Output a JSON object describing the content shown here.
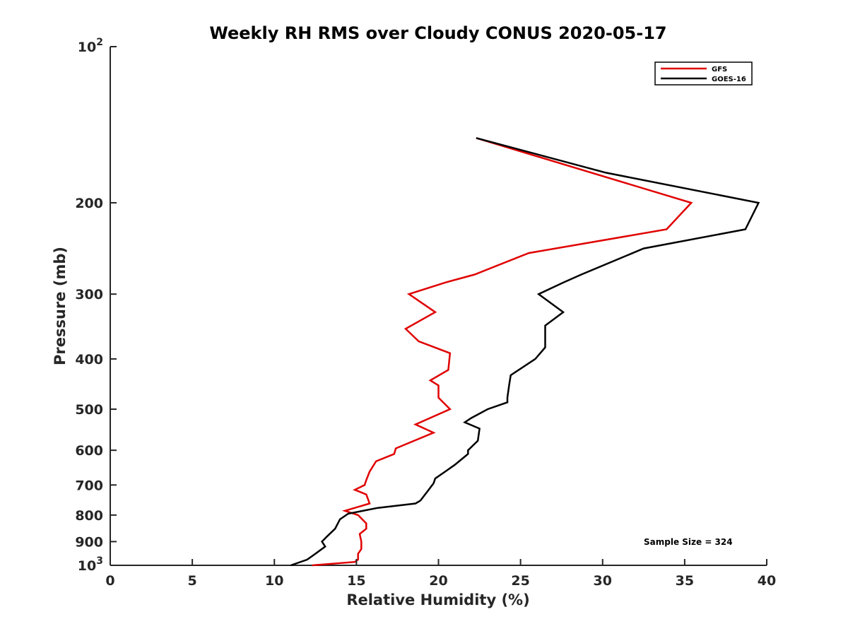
{
  "chart_data": {
    "type": "line",
    "title": "Weekly RH RMS over Cloudy CONUS 2020-05-17",
    "xlabel": "Relative Humidity (%)",
    "ylabel": "Pressure (mb)",
    "xlim": [
      0,
      40
    ],
    "ylim": [
      100,
      1000
    ],
    "y_scale": "log",
    "y_reversed": true,
    "x_ticks": [
      "0",
      "5",
      "10",
      "15",
      "20",
      "25",
      "30",
      "35",
      "40"
    ],
    "y_ticks": [
      {
        "value": 100,
        "base": "10",
        "exp": "2"
      },
      {
        "value": 200,
        "label": "200"
      },
      {
        "value": 300,
        "label": "300"
      },
      {
        "value": 400,
        "label": "400"
      },
      {
        "value": 500,
        "label": "500"
      },
      {
        "value": 600,
        "label": "600"
      },
      {
        "value": 700,
        "label": "700"
      },
      {
        "value": 800,
        "label": "800"
      },
      {
        "value": 900,
        "label": "900"
      },
      {
        "value": 1000,
        "base": "10",
        "exp": "3"
      }
    ],
    "grid": false,
    "legend_position": "top-right",
    "annotation": "Sample Size = 324",
    "series": [
      {
        "name": "GFS",
        "color": "#e00000",
        "points": [
          [
            22.3,
            150
          ],
          [
            35.4,
            200
          ],
          [
            33.9,
            225
          ],
          [
            25.5,
            250
          ],
          [
            22.2,
            275
          ],
          [
            20.4,
            285
          ],
          [
            18.2,
            300
          ],
          [
            19.8,
            325
          ],
          [
            18.0,
            350
          ],
          [
            18.8,
            370
          ],
          [
            20.7,
            390
          ],
          [
            20.6,
            420
          ],
          [
            19.5,
            440
          ],
          [
            20.0,
            450
          ],
          [
            20.0,
            475
          ],
          [
            20.7,
            500
          ],
          [
            18.6,
            535
          ],
          [
            19.7,
            555
          ],
          [
            17.4,
            595
          ],
          [
            17.3,
            610
          ],
          [
            16.2,
            630
          ],
          [
            15.8,
            660
          ],
          [
            15.6,
            685
          ],
          [
            15.5,
            700
          ],
          [
            14.9,
            715
          ],
          [
            15.6,
            730
          ],
          [
            15.8,
            760
          ],
          [
            14.3,
            785
          ],
          [
            15.1,
            800
          ],
          [
            15.6,
            830
          ],
          [
            15.6,
            850
          ],
          [
            15.2,
            870
          ],
          [
            15.3,
            900
          ],
          [
            15.3,
            930
          ],
          [
            15.1,
            950
          ],
          [
            15.1,
            975
          ],
          [
            14.9,
            985
          ],
          [
            12.3,
            1000
          ]
        ]
      },
      {
        "name": "GOES-16",
        "color": "#000000",
        "points": [
          [
            22.3,
            150
          ],
          [
            30.2,
            175
          ],
          [
            39.5,
            200
          ],
          [
            38.7,
            225
          ],
          [
            32.5,
            245
          ],
          [
            28.7,
            275
          ],
          [
            27.6,
            285
          ],
          [
            26.1,
            300
          ],
          [
            27.6,
            325
          ],
          [
            26.5,
            345
          ],
          [
            26.5,
            380
          ],
          [
            25.9,
            400
          ],
          [
            24.4,
            430
          ],
          [
            24.3,
            450
          ],
          [
            24.2,
            475
          ],
          [
            24.2,
            485
          ],
          [
            23.0,
            500
          ],
          [
            22.0,
            520
          ],
          [
            21.6,
            530
          ],
          [
            22.5,
            545
          ],
          [
            22.4,
            575
          ],
          [
            21.8,
            600
          ],
          [
            21.8,
            610
          ],
          [
            21.0,
            640
          ],
          [
            20.4,
            660
          ],
          [
            19.8,
            680
          ],
          [
            19.7,
            695
          ],
          [
            19.4,
            715
          ],
          [
            18.9,
            750
          ],
          [
            18.6,
            760
          ],
          [
            16.3,
            775
          ],
          [
            14.5,
            795
          ],
          [
            14.0,
            815
          ],
          [
            13.7,
            850
          ],
          [
            13.2,
            880
          ],
          [
            12.9,
            900
          ],
          [
            13.1,
            920
          ],
          [
            12.5,
            950
          ],
          [
            12.0,
            975
          ],
          [
            11.0,
            1000
          ]
        ]
      }
    ]
  }
}
